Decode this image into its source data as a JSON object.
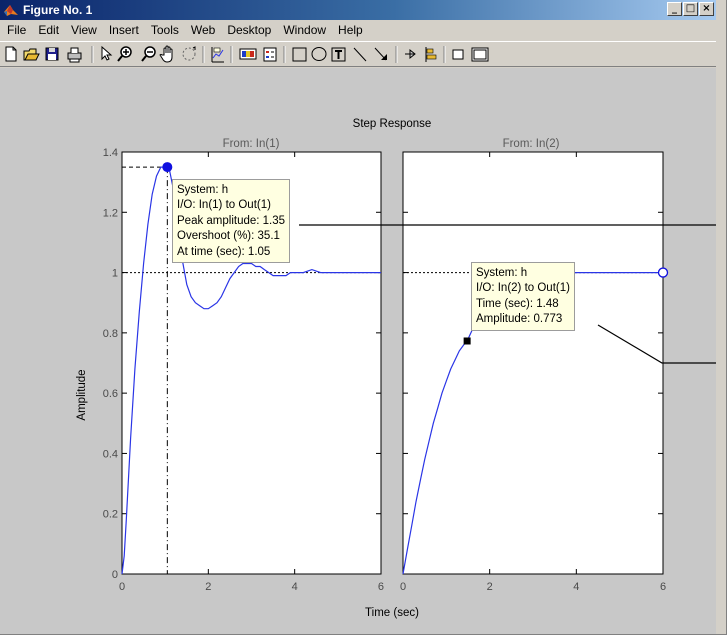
{
  "window": {
    "title": "Figure No. 1",
    "controls": [
      "_",
      "□",
      "×"
    ]
  },
  "menu": [
    "File",
    "Edit",
    "View",
    "Insert",
    "Tools",
    "Web",
    "Desktop",
    "Window",
    "Help"
  ],
  "toolbar_icons": [
    "new-figure-icon",
    "open-file-icon",
    "save-icon",
    "print-icon",
    "select-arrow-icon",
    "zoom-in-icon",
    "zoom-out-icon",
    "pan-hand-icon",
    "rotate-3d-icon",
    "data-cursor-icon",
    "colorbar-icon",
    "legend-icon",
    "rectangle-icon",
    "ellipse-icon",
    "textbox-icon",
    "line-icon",
    "arrow-icon",
    "pin-icon",
    "align-icon",
    "plot-browser-icon",
    "property-editor-icon"
  ],
  "colors": {
    "curve": "#2a35e6",
    "tip_background": "#ffffe1",
    "figure_background": "#c8c8c8"
  },
  "plot": {
    "title": "Step Response",
    "ylabel": "Amplitude",
    "xlabel": "Time (sec)",
    "column_titles": [
      "From: In(1)",
      "From: In(2)"
    ]
  },
  "chart_data": [
    {
      "type": "line",
      "title": "From: In(1)",
      "xlabel": "Time (sec)",
      "ylabel": "Amplitude",
      "xlim": [
        0,
        6
      ],
      "ylim": [
        0,
        1.4
      ],
      "xticks": [
        "0",
        "2",
        "4",
        "6"
      ],
      "yticks": [
        "0",
        "0.2",
        "0.4",
        "0.6",
        "0.8",
        "1",
        "1.2",
        "1.4"
      ],
      "reference_line": 1,
      "series": [
        {
          "x": [
            0,
            0.05,
            0.1,
            0.2,
            0.3,
            0.4,
            0.5,
            0.6,
            0.7,
            0.8,
            0.9,
            1.0,
            1.05,
            1.1,
            1.2,
            1.3,
            1.4,
            1.5,
            1.6,
            1.7,
            1.8,
            1.9,
            2.0,
            2.1,
            2.2,
            2.3,
            2.4,
            2.5,
            2.6,
            2.7,
            2.8,
            2.9,
            3.0,
            3.1,
            3.2,
            3.3,
            3.4,
            3.5,
            3.6,
            3.7,
            3.8,
            3.9,
            4.0,
            4.2,
            4.4,
            4.6,
            4.8,
            5.0,
            5.2,
            5.4,
            5.6,
            5.8,
            6.0
          ],
          "y": [
            0,
            0.06,
            0.18,
            0.45,
            0.68,
            0.87,
            1.03,
            1.16,
            1.26,
            1.32,
            1.35,
            1.35,
            1.35,
            1.34,
            1.27,
            1.16,
            1.04,
            0.96,
            0.92,
            0.9,
            0.89,
            0.88,
            0.88,
            0.89,
            0.9,
            0.92,
            0.95,
            0.98,
            1.0,
            1.02,
            1.03,
            1.03,
            1.03,
            1.02,
            1.02,
            1.01,
            1.0,
            0.99,
            0.99,
            0.99,
            0.99,
            1.0,
            1.0,
            1.0,
            1.01,
            1.0,
            1.0,
            1.0,
            1.0,
            1.0,
            1.0,
            1.0,
            1.0
          ]
        }
      ],
      "datatip": {
        "x": 1.05,
        "y": 1.35,
        "lines": [
          "System: h",
          "I/O: In(1) to Out(1)",
          "Peak amplitude: 1.35",
          "Overshoot (%): 35.1",
          "At time (sec): 1.05"
        ]
      }
    },
    {
      "type": "line",
      "title": "From: In(2)",
      "xlabel": "Time (sec)",
      "xlim": [
        0,
        6
      ],
      "ylim": [
        0,
        1.4
      ],
      "xticks": [
        "0",
        "2",
        "4",
        "6"
      ],
      "reference_line": 1,
      "series": [
        {
          "x": [
            0,
            0.1,
            0.2,
            0.3,
            0.4,
            0.5,
            0.6,
            0.7,
            0.8,
            0.9,
            1.0,
            1.1,
            1.2,
            1.3,
            1.4,
            1.48,
            1.6,
            1.8,
            2.0,
            2.2,
            2.4,
            2.6,
            2.8,
            3.0,
            3.2,
            3.4,
            3.6,
            3.8,
            4.0,
            4.2,
            4.4,
            4.6,
            4.8,
            5.0,
            5.2,
            5.4,
            5.6,
            5.8,
            6.0
          ],
          "y": [
            0,
            0.08,
            0.16,
            0.24,
            0.31,
            0.38,
            0.44,
            0.5,
            0.55,
            0.6,
            0.64,
            0.68,
            0.71,
            0.74,
            0.76,
            0.773,
            0.81,
            0.86,
            0.9,
            0.93,
            0.95,
            0.97,
            0.98,
            0.99,
            0.99,
            1.0,
            1.0,
            1.0,
            1.0,
            1.0,
            1.0,
            1.0,
            1.0,
            1.0,
            1.0,
            1.0,
            1.0,
            1.0,
            1.0
          ]
        }
      ],
      "datatip": {
        "x": 1.48,
        "y": 0.773,
        "lines": [
          "System: h",
          "I/O: In(2) to Out(1)",
          "Time (sec): 1.48",
          "Amplitude: 0.773"
        ]
      }
    }
  ]
}
